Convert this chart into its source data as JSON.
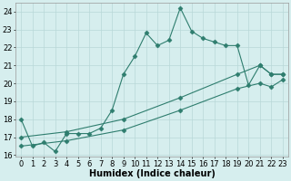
{
  "line1_x": [
    0,
    1,
    2,
    3,
    4,
    5,
    6,
    7,
    8,
    9,
    10,
    11,
    12,
    13,
    14,
    15,
    16,
    17,
    18,
    19,
    20,
    21,
    22,
    23
  ],
  "line1_y": [
    18,
    16.5,
    16.7,
    16.2,
    17.2,
    17.2,
    17.2,
    17.5,
    18.5,
    20.5,
    21.5,
    22.8,
    22.1,
    22.4,
    24.2,
    22.9,
    22.5,
    22.3,
    22.1,
    22.1,
    19.9,
    21.0,
    20.5,
    20.5
  ],
  "line2_x": [
    0,
    4,
    9,
    14,
    19,
    21,
    22,
    23
  ],
  "line2_y": [
    17.0,
    17.3,
    18.0,
    19.2,
    20.5,
    21.0,
    20.5,
    20.5
  ],
  "line3_x": [
    0,
    4,
    9,
    14,
    19,
    21,
    22,
    23
  ],
  "line3_y": [
    16.5,
    16.8,
    17.4,
    18.5,
    19.7,
    20.0,
    19.8,
    20.2
  ],
  "line_color": "#2e7d6e",
  "bg_color": "#d6eeee",
  "grid_color": "#b8d8d8",
  "xlabel": "Humidex (Indice chaleur)",
  "xlabel_fontsize": 7,
  "ylim": [
    15.9,
    24.5
  ],
  "xlim": [
    -0.5,
    23.5
  ],
  "yticks": [
    16,
    17,
    18,
    19,
    20,
    21,
    22,
    23,
    24
  ],
  "xticks": [
    0,
    1,
    2,
    3,
    4,
    5,
    6,
    7,
    8,
    9,
    10,
    11,
    12,
    13,
    14,
    15,
    16,
    17,
    18,
    19,
    20,
    21,
    22,
    23
  ],
  "tick_fontsize": 6
}
